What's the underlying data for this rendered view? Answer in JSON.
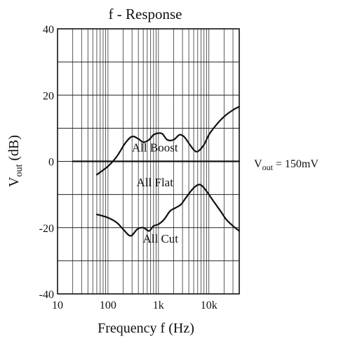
{
  "chart_data": {
    "type": "line",
    "title": "f - Response",
    "xlabel": "Frequency f (Hz)",
    "ylabel_main": "V",
    "ylabel_sub": "out",
    "ylabel_unit": " (dB)",
    "xscale": "log",
    "xlim": [
      10,
      40000
    ],
    "ylim": [
      -40,
      40
    ],
    "grid": true,
    "x_ticks": [
      {
        "value": 10,
        "label": "10"
      },
      {
        "value": 100,
        "label": "100"
      },
      {
        "value": 1000,
        "label": "1k"
      },
      {
        "value": 10000,
        "label": "10k"
      }
    ],
    "y_ticks": [
      {
        "value": 40,
        "label": "40"
      },
      {
        "value": 20,
        "label": "20"
      },
      {
        "value": 0,
        "label": "0"
      },
      {
        "value": -20,
        "label": "-20"
      },
      {
        "value": -40,
        "label": "-40"
      }
    ],
    "series": [
      {
        "name": "All Boost",
        "label_at": [
          850,
          3
        ],
        "points": [
          [
            60,
            -4
          ],
          [
            100,
            -1.5
          ],
          [
            150,
            1.5
          ],
          [
            220,
            5.5
          ],
          [
            300,
            7.5
          ],
          [
            400,
            6.8
          ],
          [
            500,
            5.8
          ],
          [
            650,
            6.5
          ],
          [
            800,
            8
          ],
          [
            1000,
            8.5
          ],
          [
            1200,
            8.3
          ],
          [
            1500,
            6.5
          ],
          [
            2000,
            6.5
          ],
          [
            2600,
            8
          ],
          [
            3200,
            7.5
          ],
          [
            4000,
            5.5
          ],
          [
            5000,
            3.5
          ],
          [
            6000,
            3
          ],
          [
            8000,
            5
          ],
          [
            10000,
            8
          ],
          [
            14000,
            11
          ],
          [
            20000,
            13.5
          ],
          [
            30000,
            15.5
          ],
          [
            40000,
            16.5
          ]
        ]
      },
      {
        "name": "All Flat",
        "label_at": [
          850,
          -7.5
        ],
        "points": [
          [
            20,
            0
          ],
          [
            40000,
            0
          ]
        ]
      },
      {
        "name": "All Cut",
        "label_at": [
          1100,
          -24.5
        ],
        "points": [
          [
            60,
            -16
          ],
          [
            100,
            -17
          ],
          [
            150,
            -18.5
          ],
          [
            200,
            -20.5
          ],
          [
            280,
            -22.5
          ],
          [
            380,
            -20.5
          ],
          [
            500,
            -20
          ],
          [
            650,
            -21
          ],
          [
            800,
            -19.5
          ],
          [
            1000,
            -19
          ],
          [
            1300,
            -17.5
          ],
          [
            1700,
            -15
          ],
          [
            2200,
            -14
          ],
          [
            2800,
            -13
          ],
          [
            3500,
            -11
          ],
          [
            5000,
            -8
          ],
          [
            6500,
            -7
          ],
          [
            8000,
            -8
          ],
          [
            10000,
            -10
          ],
          [
            13000,
            -12.5
          ],
          [
            17000,
            -15
          ],
          [
            22000,
            -17.5
          ],
          [
            30000,
            -19.5
          ],
          [
            40000,
            -21
          ]
        ]
      }
    ],
    "annotation": {
      "main": "V",
      "sub": "out",
      "rest": " = 150mV"
    }
  }
}
